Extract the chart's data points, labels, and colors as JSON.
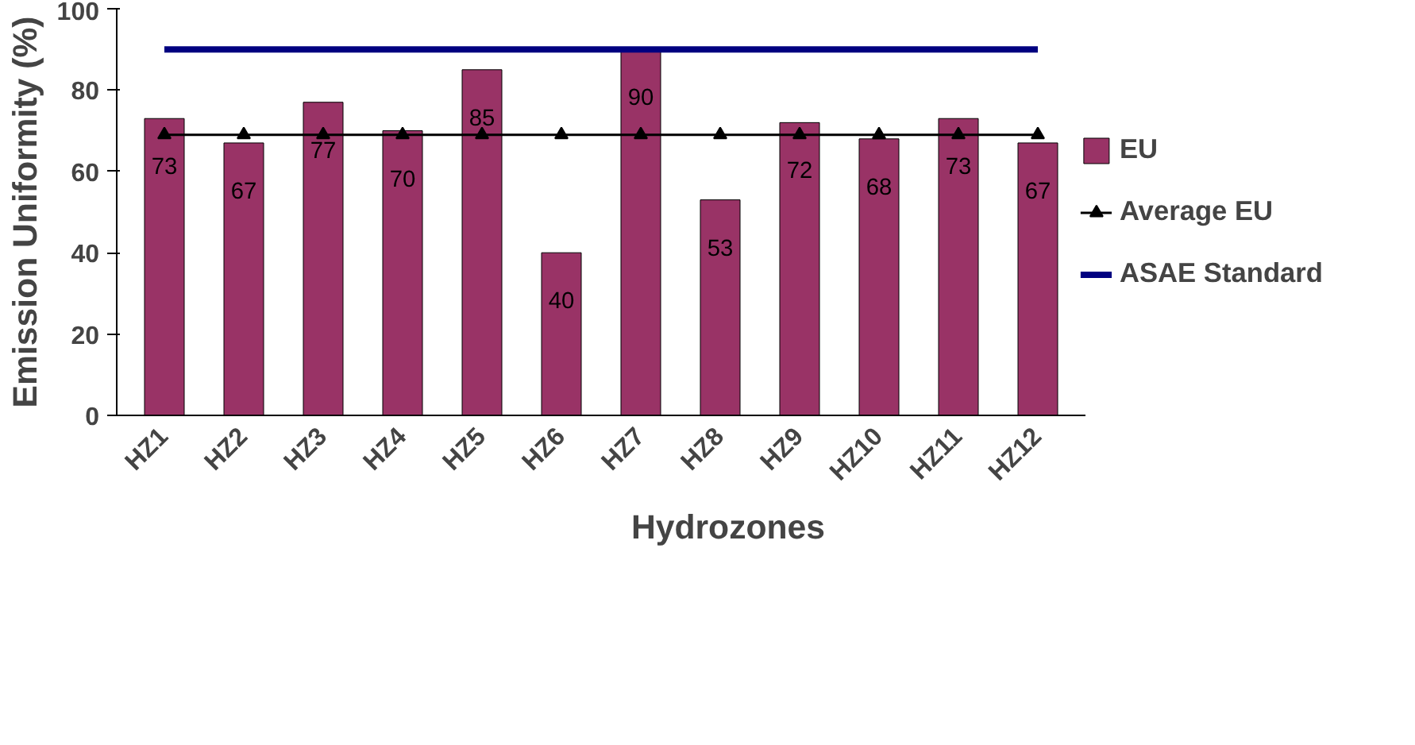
{
  "chart_data": {
    "type": "bar",
    "xlabel": "Hydrozones",
    "ylabel": "Emission Uniformity (%)",
    "categories": [
      "HZ1",
      "HZ2",
      "HZ3",
      "HZ4",
      "HZ5",
      "HZ6",
      "HZ7",
      "HZ8",
      "HZ9",
      "HZ10",
      "HZ11",
      "HZ12"
    ],
    "series": [
      {
        "name": "EU",
        "color": "#993366",
        "values": [
          73,
          67,
          77,
          70,
          85,
          40,
          90,
          53,
          72,
          68,
          73,
          67
        ],
        "value_labels": [
          "73",
          "67",
          "77",
          "70",
          "85",
          "40",
          "90",
          "53",
          "72",
          "68",
          "73",
          "67"
        ]
      },
      {
        "name": "Average EU",
        "type": "line",
        "color": "#000000",
        "marker": "triangle",
        "values": [
          69,
          69,
          69,
          69,
          69,
          69,
          69,
          69,
          69,
          69,
          69,
          69
        ]
      },
      {
        "name": "ASAE Standard",
        "type": "line",
        "color": "#000080",
        "marker": "none",
        "values": [
          90,
          90,
          90,
          90,
          90,
          90,
          90,
          90,
          90,
          90,
          90,
          90
        ]
      }
    ],
    "ylim": [
      0,
      100
    ],
    "yticks": [
      0,
      20,
      40,
      60,
      80,
      100
    ],
    "grid": false,
    "legend": "right"
  }
}
